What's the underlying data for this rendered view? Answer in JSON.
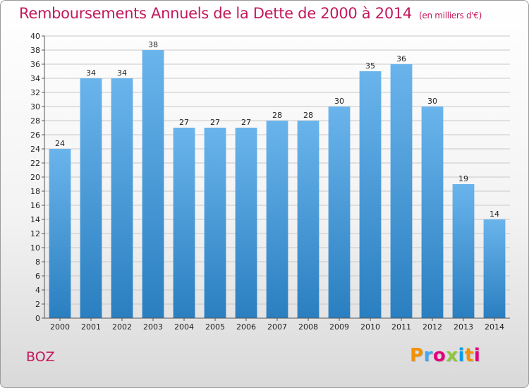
{
  "title": "Remboursements Annuels de la Dette de 2000 à 2014",
  "unit_note": "(en milliers d'€)",
  "commune": "BOZ",
  "logo_text": [
    "P",
    "r",
    "o",
    "x",
    "i",
    "t",
    "i"
  ],
  "colors": {
    "bar_light": "#6ab4ec",
    "bar_dark": "#2a7fc0",
    "title": "#c2185b",
    "grid": "#c8c8c8"
  },
  "chart_data": {
    "type": "bar",
    "categories": [
      "2000",
      "2001",
      "2002",
      "2003",
      "2004",
      "2005",
      "2006",
      "2007",
      "2008",
      "2009",
      "2010",
      "2011",
      "2012",
      "2013",
      "2014"
    ],
    "values": [
      24,
      34,
      34,
      38,
      27,
      27,
      27,
      28,
      28,
      30,
      35,
      36,
      30,
      19,
      14
    ],
    "ylim": [
      0,
      40
    ],
    "ytick_step": 2,
    "grid": true,
    "data_labels": true
  }
}
